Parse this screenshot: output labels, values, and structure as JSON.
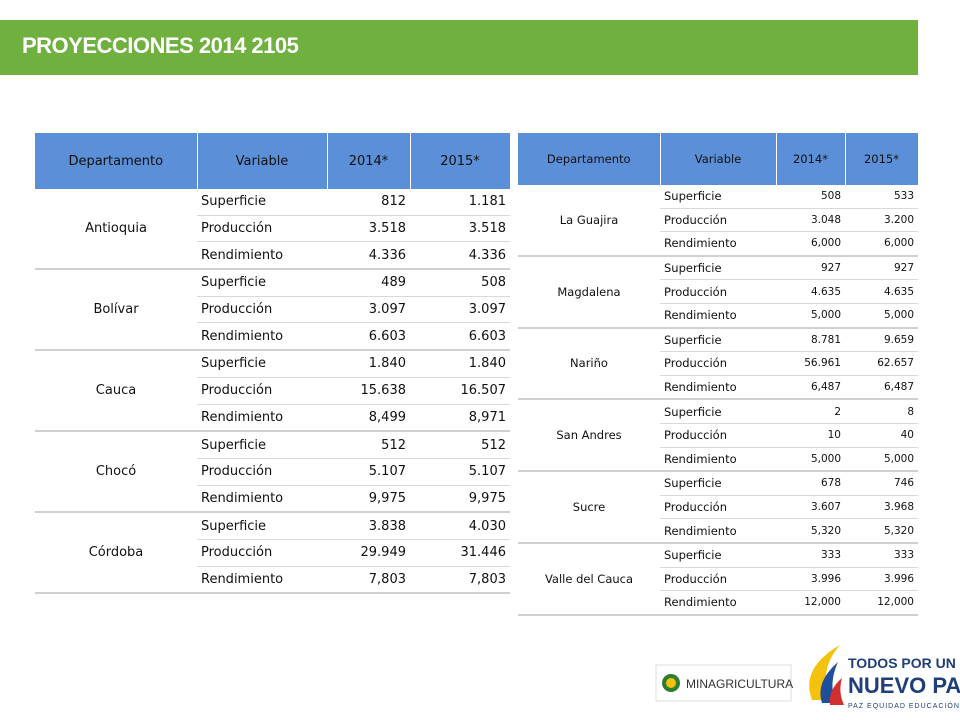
{
  "header": {
    "title": "PROYECCIONES 2014 2105"
  },
  "tables": [
    {
      "headers": [
        "Departamento",
        "Variable",
        "2014*",
        "2015*"
      ],
      "groups": [
        {
          "name": "Antioquia",
          "rows": [
            [
              "Superficie",
              "812",
              "1.181"
            ],
            [
              "Producción",
              "3.518",
              "3.518"
            ],
            [
              "Rendimiento",
              "4.336",
              "4.336"
            ]
          ]
        },
        {
          "name": "Bolívar",
          "rows": [
            [
              "Superficie",
              "489",
              "508"
            ],
            [
              "Producción",
              "3.097",
              "3.097"
            ],
            [
              "Rendimiento",
              "6.603",
              "6.603"
            ]
          ]
        },
        {
          "name": "Cauca",
          "rows": [
            [
              "Superficie",
              "1.840",
              "1.840"
            ],
            [
              "Producción",
              "15.638",
              "16.507"
            ],
            [
              "Rendimiento",
              "8,499",
              "8,971"
            ]
          ]
        },
        {
          "name": "Chocó",
          "rows": [
            [
              "Superficie",
              "512",
              "512"
            ],
            [
              "Producción",
              "5.107",
              "5.107"
            ],
            [
              "Rendimiento",
              "9,975",
              "9,975"
            ]
          ]
        },
        {
          "name": "Córdoba",
          "rows": [
            [
              "Superficie",
              "3.838",
              "4.030"
            ],
            [
              "Producción",
              "29.949",
              "31.446"
            ],
            [
              "Rendimiento",
              "7,803",
              "7,803"
            ]
          ]
        }
      ]
    },
    {
      "headers": [
        "Departamento",
        "Variable",
        "2014*",
        "2015*"
      ],
      "groups": [
        {
          "name": "La Guajira",
          "rows": [
            [
              "Superficie",
              "508",
              "533"
            ],
            [
              "Producción",
              "3.048",
              "3.200"
            ],
            [
              "Rendimiento",
              "6,000",
              "6,000"
            ]
          ]
        },
        {
          "name": "Magdalena",
          "rows": [
            [
              "Superficie",
              "927",
              "927"
            ],
            [
              "Producción",
              "4.635",
              "4.635"
            ],
            [
              "Rendimiento",
              "5,000",
              "5,000"
            ]
          ]
        },
        {
          "name": "Nariño",
          "rows": [
            [
              "Superficie",
              "8.781",
              "9.659"
            ],
            [
              "Producción",
              "56.961",
              "62.657"
            ],
            [
              "Rendimiento",
              "6,487",
              "6,487"
            ]
          ]
        },
        {
          "name": "San Andres",
          "rows": [
            [
              "Superficie",
              "2",
              "8"
            ],
            [
              "Producción",
              "10",
              "40"
            ],
            [
              "Rendimiento",
              "5,000",
              "5,000"
            ]
          ]
        },
        {
          "name": "Sucre",
          "rows": [
            [
              "Superficie",
              "678",
              "746"
            ],
            [
              "Producción",
              "3.607",
              "3.968"
            ],
            [
              "Rendimiento",
              "5,320",
              "5,320"
            ]
          ]
        },
        {
          "name": "Valle del Cauca",
          "rows": [
            [
              "Superficie",
              "333",
              "333"
            ],
            [
              "Producción",
              "3.996",
              "3.996"
            ],
            [
              "Rendimiento",
              "12,000",
              "12,000"
            ]
          ]
        }
      ]
    }
  ],
  "logos": {
    "ministry": "MINAGRICULTURA",
    "slogan_top": "TODOS POR UN",
    "slogan_main": "NUEVO PAÍS",
    "slogan_sub": "PAZ EQUIDAD EDUCACIÓN"
  }
}
